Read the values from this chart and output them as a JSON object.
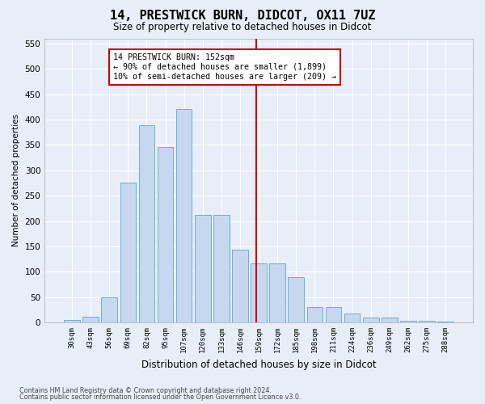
{
  "title": "14, PRESTWICK BURN, DIDCOT, OX11 7UZ",
  "subtitle": "Size of property relative to detached houses in Didcot",
  "xlabel": "Distribution of detached houses by size in Didcot",
  "ylabel": "Number of detached properties",
  "footer1": "Contains HM Land Registry data © Crown copyright and database right 2024.",
  "footer2": "Contains public sector information licensed under the Open Government Licence v3.0.",
  "categories": [
    "30sqm",
    "43sqm",
    "56sqm",
    "69sqm",
    "82sqm",
    "95sqm",
    "107sqm",
    "120sqm",
    "133sqm",
    "146sqm",
    "159sqm",
    "172sqm",
    "185sqm",
    "198sqm",
    "211sqm",
    "224sqm",
    "236sqm",
    "249sqm",
    "262sqm",
    "275sqm",
    "288sqm"
  ],
  "values": [
    5,
    12,
    49,
    275,
    388,
    345,
    420,
    212,
    212,
    143,
    117,
    117,
    90,
    30,
    30,
    18,
    10,
    10,
    3,
    3,
    2
  ],
  "bar_color": "#c5d8f0",
  "bar_edge_color": "#6baed6",
  "bg_color": "#e8eef8",
  "grid_color": "#ffffff",
  "fig_bg_color": "#e8eef8",
  "annotation_line_color": "#cc0000",
  "annotation_text_line1": "14 PRESTWICK BURN: 152sqm",
  "annotation_text_line2": "← 90% of detached houses are smaller (1,899)",
  "annotation_text_line3": "10% of semi-detached houses are larger (209) →",
  "annotation_box_color": "#cc0000",
  "line_x_index": 9.85,
  "ylim": [
    0,
    560
  ],
  "yticks": [
    0,
    50,
    100,
    150,
    200,
    250,
    300,
    350,
    400,
    450,
    500,
    550
  ]
}
